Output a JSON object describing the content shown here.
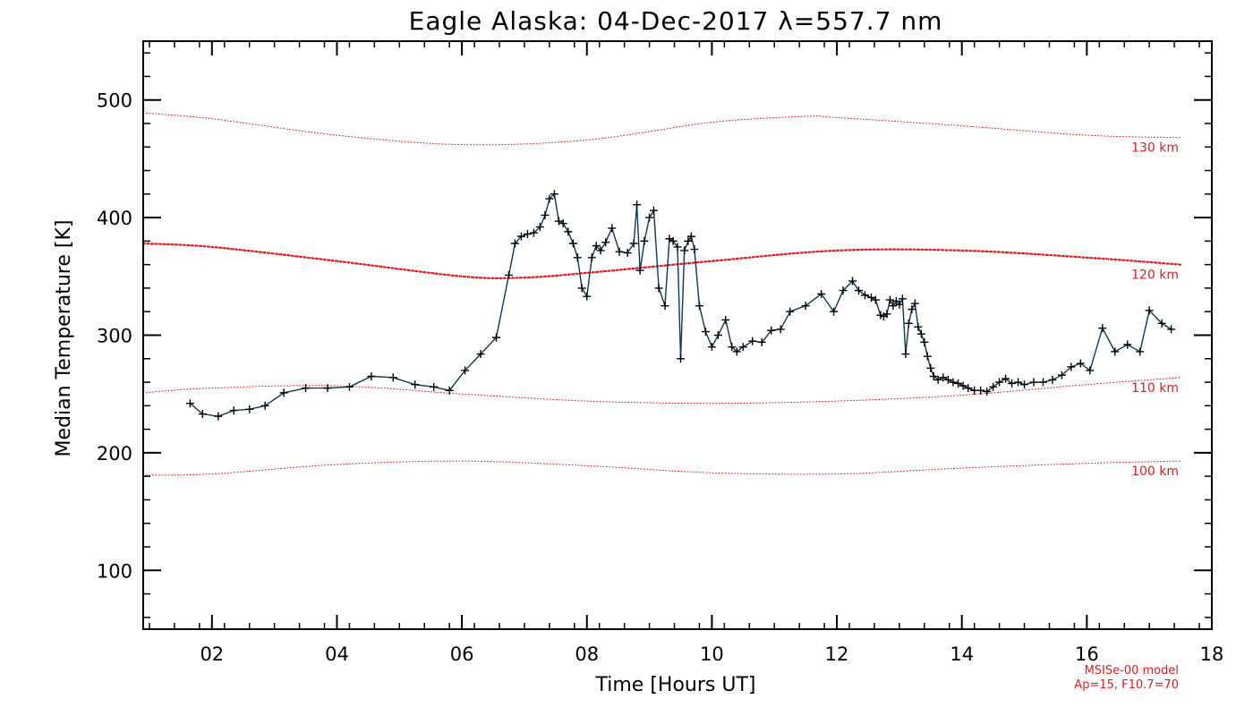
{
  "chart_data": {
    "type": "line",
    "title": "Eagle Alaska: 04-Dec-2017 λ=557.7 nm",
    "xlabel": "Time [Hours UT]",
    "ylabel": "Median Temperature [K]",
    "xlim": [
      0.9,
      18
    ],
    "ylim": [
      50,
      550
    ],
    "x_tick_labels": [
      "02",
      "04",
      "06",
      "08",
      "10",
      "12",
      "14",
      "16",
      "18"
    ],
    "x_ticks": [
      2,
      4,
      6,
      8,
      10,
      12,
      14,
      16,
      18
    ],
    "y_ticks": [
      100,
      200,
      300,
      400,
      500
    ],
    "y_tick_labels": [
      "100",
      "200",
      "300",
      "400",
      "500"
    ],
    "note": [
      "MSISe-00 model",
      "Ap=15, F10.7=70"
    ],
    "series": [
      {
        "line_color": "#0b3a52",
        "marker": "plus",
        "x": [
          1.65,
          1.85,
          2.1,
          2.35,
          2.6,
          2.85,
          3.15,
          3.5,
          3.85,
          4.2,
          4.55,
          4.9,
          5.25,
          5.55,
          5.8,
          6.05,
          6.3,
          6.55,
          6.75,
          6.85,
          6.95,
          7.05,
          7.15,
          7.25,
          7.33,
          7.4,
          7.48,
          7.55,
          7.62,
          7.7,
          7.78,
          7.85,
          7.92,
          8.0,
          8.08,
          8.15,
          8.22,
          8.3,
          8.4,
          8.52,
          8.65,
          8.75,
          8.8,
          8.85,
          8.92,
          9.0,
          9.07,
          9.15,
          9.25,
          9.32,
          9.38,
          9.45,
          9.5,
          9.56,
          9.62,
          9.67,
          9.72,
          9.8,
          9.9,
          10.0,
          10.1,
          10.22,
          10.32,
          10.4,
          10.5,
          10.65,
          10.8,
          10.95,
          11.1,
          11.25,
          11.5,
          11.75,
          11.95,
          12.1,
          12.25,
          12.35,
          12.45,
          12.55,
          12.62,
          12.7,
          12.75,
          12.8,
          12.85,
          12.9,
          12.95,
          13.0,
          13.05,
          13.1,
          13.15,
          13.2,
          13.25,
          13.3,
          13.35,
          13.4,
          13.45,
          13.5,
          13.55,
          13.62,
          13.7,
          13.78,
          13.86,
          13.94,
          14.02,
          14.1,
          14.2,
          14.3,
          14.4,
          14.5,
          14.6,
          14.7,
          14.8,
          14.9,
          15.0,
          15.15,
          15.3,
          15.45,
          15.6,
          15.75,
          15.9,
          16.05,
          16.25,
          16.45,
          16.65,
          16.85,
          17.0,
          17.2,
          17.35
        ],
        "y": [
          242,
          233,
          231,
          236,
          237,
          240,
          251,
          255,
          255,
          256,
          265,
          264,
          258,
          256,
          253,
          270,
          284,
          298,
          351,
          378,
          384,
          386,
          387,
          392,
          402,
          416,
          420,
          397,
          395,
          388,
          378,
          366,
          340,
          333,
          366,
          376,
          372,
          379,
          391,
          371,
          370,
          378,
          411,
          355,
          380,
          400,
          406,
          340,
          325,
          382,
          380,
          375,
          280,
          372,
          380,
          384,
          373,
          325,
          303,
          290,
          300,
          313,
          290,
          286,
          290,
          295,
          294,
          304,
          305,
          320,
          325,
          335,
          320,
          338,
          346,
          338,
          334,
          332,
          330,
          317,
          316,
          318,
          330,
          325,
          329,
          326,
          331,
          284,
          310,
          322,
          327,
          307,
          301,
          294,
          282,
          272,
          265,
          262,
          264,
          262,
          260,
          259,
          257,
          255,
          253,
          253,
          252,
          256,
          260,
          263,
          259,
          260,
          258,
          260,
          260,
          262,
          266,
          273,
          276,
          270,
          306,
          286,
          292,
          286,
          321,
          310,
          305
        ]
      }
    ],
    "model_curves": [
      {
        "label": "100 km",
        "color": "#e31a1c",
        "style": "dotted",
        "x": [
          0.9,
          2,
          4,
          6,
          8,
          10,
          12,
          14,
          16,
          17.5
        ],
        "y": [
          181,
          182,
          190,
          193,
          189,
          183,
          182,
          187,
          191,
          193
        ]
      },
      {
        "label": "110 km",
        "color": "#e31a1c",
        "style": "dotted",
        "x": [
          0.9,
          2,
          4,
          6,
          8,
          10,
          12,
          14,
          16,
          17.5
        ],
        "y": [
          251,
          255,
          257,
          250,
          244,
          242,
          244,
          249,
          258,
          264
        ]
      },
      {
        "label": "120 km",
        "color": "#e31a1c",
        "style": "dotted-heavy",
        "x": [
          0.9,
          2,
          4,
          6,
          7,
          8,
          10,
          12,
          14,
          16,
          17.5
        ],
        "y": [
          378,
          375,
          363,
          350,
          349,
          353,
          363,
          372,
          372,
          366,
          360
        ]
      },
      {
        "label": "130 km",
        "color": "#e31a1c",
        "style": "dotted",
        "x": [
          0.9,
          2,
          4,
          6,
          8,
          10,
          11.5,
          12,
          14,
          16,
          17.5
        ],
        "y": [
          489,
          484,
          470,
          462,
          466,
          481,
          486,
          485,
          478,
          470,
          468
        ]
      }
    ]
  }
}
